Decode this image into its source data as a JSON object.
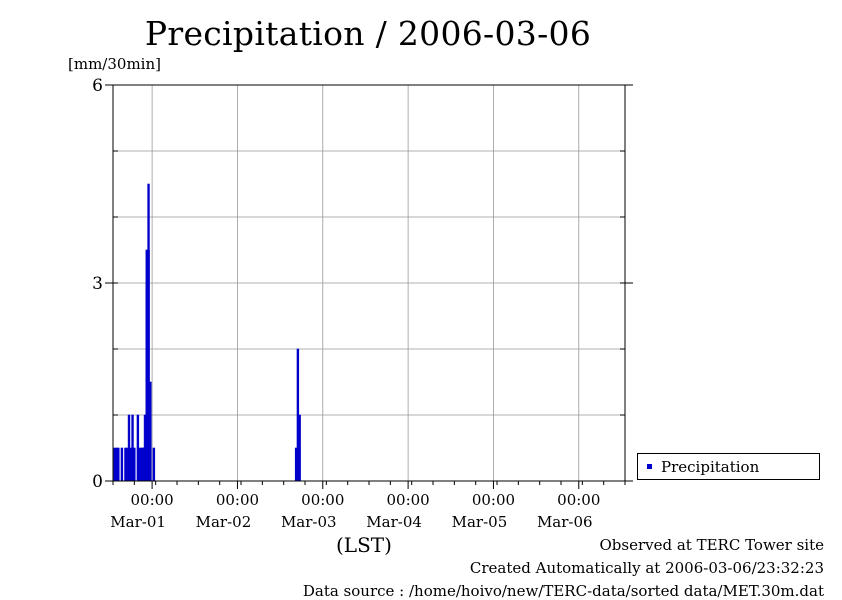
{
  "chart_data": {
    "type": "bar",
    "title": "Precipitation / 2006-03-06",
    "ylabel": "[mm/30min]",
    "xlabel": "(LST)",
    "ylim": [
      0,
      6
    ],
    "y_ticks": [
      0,
      3,
      6
    ],
    "xlim": [
      "2006-02-28T13:00",
      "2006-03-06T13:00"
    ],
    "x_ticks": [
      {
        "time": "00:00",
        "date": "Mar-01"
      },
      {
        "time": "00:00",
        "date": "Mar-02"
      },
      {
        "time": "00:00",
        "date": "Mar-03"
      },
      {
        "time": "00:00",
        "date": "Mar-04"
      },
      {
        "time": "00:00",
        "date": "Mar-05"
      },
      {
        "time": "00:00",
        "date": "Mar-06"
      }
    ],
    "grid": true,
    "legend_position": "right",
    "series": [
      {
        "name": "Precipitation",
        "color": "#0000cc",
        "points": [
          {
            "t": "2006-02-28T13:30",
            "v": 0.5
          },
          {
            "t": "2006-02-28T14:00",
            "v": 0.5
          },
          {
            "t": "2006-02-28T14:30",
            "v": 0.5
          },
          {
            "t": "2006-02-28T15:30",
            "v": 0.5
          },
          {
            "t": "2006-02-28T16:30",
            "v": 0.5
          },
          {
            "t": "2006-02-28T17:00",
            "v": 0.5
          },
          {
            "t": "2006-02-28T17:30",
            "v": 1.0
          },
          {
            "t": "2006-02-28T18:00",
            "v": 0.5
          },
          {
            "t": "2006-02-28T18:30",
            "v": 1.0
          },
          {
            "t": "2006-02-28T19:00",
            "v": 0.5
          },
          {
            "t": "2006-02-28T20:00",
            "v": 1.0
          },
          {
            "t": "2006-02-28T20:30",
            "v": 0.5
          },
          {
            "t": "2006-02-28T21:00",
            "v": 0.5
          },
          {
            "t": "2006-02-28T21:30",
            "v": 0.5
          },
          {
            "t": "2006-02-28T21:30",
            "v": 0.5
          },
          {
            "t": "2006-02-28T22:00",
            "v": 0.5
          },
          {
            "t": "2006-02-28T22:00",
            "v": 1.0
          },
          {
            "t": "2006-02-28T22:30",
            "v": 3.5
          },
          {
            "t": "2006-02-28T22:30",
            "v": 3.0
          },
          {
            "t": "2006-02-28T23:00",
            "v": 3.5
          },
          {
            "t": "2006-02-28T23:00",
            "v": 4.5
          },
          {
            "t": "2006-02-28T23:30",
            "v": 1.5
          },
          {
            "t": "2006-02-28T23:30",
            "v": 1.0
          },
          {
            "t": "2006-03-01T00:30",
            "v": 0.5
          },
          {
            "t": "2006-03-02T16:30",
            "v": 0.5
          },
          {
            "t": "2006-03-02T17:00",
            "v": 2.0
          },
          {
            "t": "2006-03-02T17:30",
            "v": 1.0
          }
        ]
      }
    ]
  },
  "footer": {
    "observed": "Observed at TERC Tower site",
    "created": "Created Automatically at 2006-03-06/23:32:23",
    "source": "Data source : /home/hoivo/new/TERC-data/sorted  data/MET.30m.dat"
  }
}
